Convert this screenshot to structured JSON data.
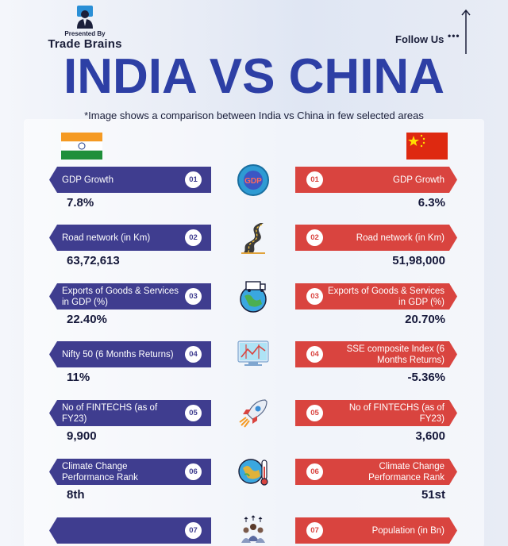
{
  "header": {
    "presented_by": "Presented By",
    "brand": "Trade Brains",
    "follow_us": "Follow Us",
    "follow_dots": "•••",
    "title": "INDIA VS CHINA",
    "subtitle": "*Image shows a comparison between India vs China in few selected areas"
  },
  "colors": {
    "india_pill": "#3f3d8f",
    "china_pill": "#d9443f",
    "title": "#2d3fa5"
  },
  "rows": [
    {
      "num": "01",
      "india_label": "GDP Growth",
      "china_label": "GDP Growth",
      "india_value": "7.8%",
      "china_value": "6.3%",
      "icon": "gdp-icon",
      "icon_text": "GDP"
    },
    {
      "num": "02",
      "india_label": "Road network (in Km)",
      "china_label": "Road network (in Km)",
      "india_value": "63,72,613",
      "china_value": "51,98,000",
      "icon": "road-icon"
    },
    {
      "num": "03",
      "india_label": "Exports of Goods & Services in GDP (%)",
      "china_label": "Exports of Goods & Services in GDP (%)",
      "india_value": "22.40%",
      "china_value": "20.70%",
      "icon": "globe-truck-icon"
    },
    {
      "num": "04",
      "india_label": "Nifty 50 (6 Months Returns)",
      "china_label": "SSE composite Index (6 Months Returns)",
      "india_value": "11%",
      "china_value": "-5.36%",
      "icon": "chart-monitor-icon"
    },
    {
      "num": "05",
      "india_label": "No of FINTECHS (as of FY23)",
      "china_label": "No of FINTECHS (as of FY23)",
      "india_value": "9,900",
      "china_value": "3,600",
      "icon": "rocket-icon"
    },
    {
      "num": "06",
      "india_label": "Climate Change Performance Rank",
      "china_label": "Climate Change Performance Rank",
      "india_value": "8th",
      "china_value": "51st",
      "icon": "globe-thermometer-icon"
    },
    {
      "num": "07",
      "india_label": "",
      "china_label": "Population (in Bn)",
      "india_value": "",
      "china_value": "",
      "icon": "population-icon"
    }
  ]
}
